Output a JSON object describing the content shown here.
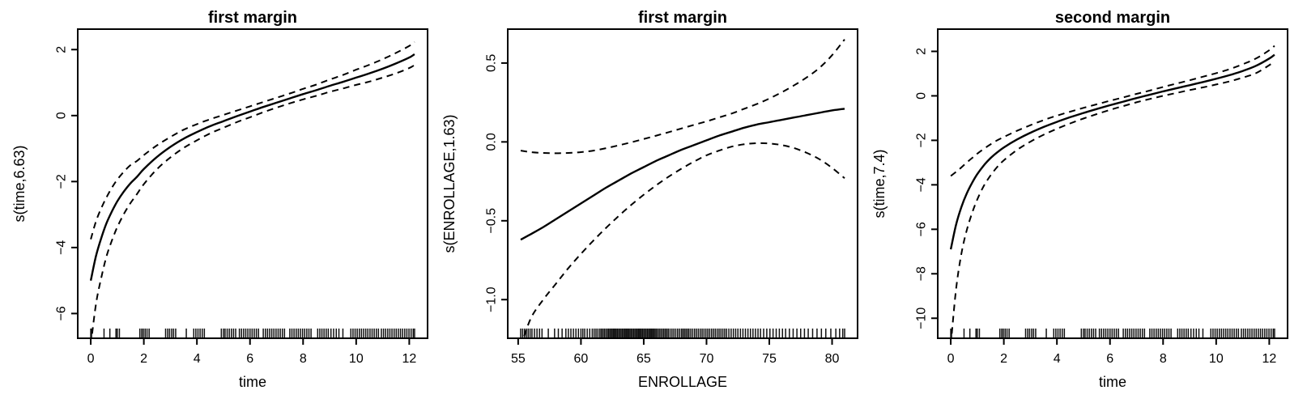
{
  "figure": {
    "background": "#ffffff",
    "line_color": "#000000",
    "description": "GAM smooth term plots with 2-SE dashed confidence bands and data rug"
  },
  "chart_data": [
    {
      "id": "first-margin-time",
      "type": "line",
      "title": "first margin",
      "xlabel": "time",
      "ylabel": "s(time,6.63)",
      "xlim": [
        -0.49,
        12.69
      ],
      "ylim": [
        -6.75,
        2.62
      ],
      "grid": false,
      "legend": "none",
      "xticks": [
        0,
        2,
        4,
        6,
        8,
        10,
        12
      ],
      "xtick_labels": [
        "0",
        "2",
        "4",
        "6",
        "8",
        "10",
        "12"
      ],
      "yticks": [
        2,
        0,
        -2,
        -4,
        -6
      ],
      "ytick_labels": [
        "2",
        "0",
        "−2",
        "−4",
        "−6"
      ],
      "series": [
        {
          "name": "fit",
          "style": "solid",
          "x": [
            0,
            0.2,
            0.4,
            0.6,
            0.8,
            1,
            1.25,
            1.5,
            1.75,
            2,
            2.5,
            3,
            3.5,
            4,
            4.5,
            5,
            5.5,
            6,
            6.5,
            7,
            7.5,
            8,
            8.5,
            9,
            9.5,
            10,
            10.5,
            11,
            11.5,
            12,
            12.2
          ],
          "y": [
            -5.0,
            -4.25,
            -3.7,
            -3.25,
            -2.9,
            -2.6,
            -2.3,
            -2.05,
            -1.85,
            -1.62,
            -1.25,
            -0.95,
            -0.7,
            -0.5,
            -0.32,
            -0.17,
            -0.02,
            0.12,
            0.26,
            0.39,
            0.52,
            0.65,
            0.77,
            0.9,
            1.02,
            1.15,
            1.28,
            1.42,
            1.58,
            1.76,
            1.86
          ]
        },
        {
          "name": "upper-ci",
          "style": "dashed",
          "x": [
            0,
            0.2,
            0.4,
            0.6,
            0.8,
            1,
            1.25,
            1.5,
            1.75,
            2,
            2.5,
            3,
            3.5,
            4,
            4.5,
            5,
            5.5,
            6,
            6.5,
            7,
            7.5,
            8,
            8.5,
            9,
            9.5,
            10,
            10.5,
            11,
            11.5,
            12,
            12.2
          ],
          "y": [
            -3.75,
            -3.2,
            -2.8,
            -2.47,
            -2.18,
            -1.94,
            -1.7,
            -1.5,
            -1.37,
            -1.2,
            -0.9,
            -0.65,
            -0.43,
            -0.26,
            -0.11,
            0.02,
            0.15,
            0.28,
            0.41,
            0.54,
            0.67,
            0.81,
            0.94,
            1.09,
            1.23,
            1.39,
            1.54,
            1.71,
            1.9,
            2.11,
            2.23
          ]
        },
        {
          "name": "lower-ci",
          "style": "dashed",
          "x": [
            0,
            0.2,
            0.4,
            0.6,
            0.8,
            1,
            1.25,
            1.5,
            1.75,
            2,
            2.5,
            3,
            3.5,
            4,
            4.5,
            5,
            5.5,
            6,
            6.5,
            7,
            7.5,
            8,
            8.5,
            9,
            9.5,
            10,
            10.5,
            11,
            11.5,
            12,
            12.2
          ],
          "y": [
            -6.95,
            -5.7,
            -4.9,
            -4.25,
            -3.78,
            -3.38,
            -2.98,
            -2.65,
            -2.37,
            -2.08,
            -1.62,
            -1.27,
            -0.98,
            -0.75,
            -0.54,
            -0.37,
            -0.2,
            -0.05,
            0.1,
            0.24,
            0.37,
            0.49,
            0.6,
            0.72,
            0.82,
            0.93,
            1.03,
            1.15,
            1.28,
            1.44,
            1.53
          ]
        }
      ],
      "rug": [
        0,
        0.03,
        0.5,
        0.72,
        0.95,
        1.0,
        1.08,
        1.85,
        1.92,
        1.98,
        2.05,
        2.12,
        2.2,
        2.82,
        2.9,
        2.97,
        3.05,
        3.12,
        3.2,
        3.6,
        3.88,
        3.96,
        4.04,
        4.12,
        4.2,
        4.28,
        4.92,
        5.0,
        5.06,
        5.14,
        5.22,
        5.3,
        5.38,
        5.46,
        5.6,
        5.68,
        5.76,
        5.84,
        5.92,
        6.0,
        6.08,
        6.16,
        6.24,
        6.32,
        6.5,
        6.58,
        6.66,
        6.74,
        6.82,
        6.9,
        6.98,
        7.06,
        7.14,
        7.22,
        7.3,
        7.5,
        7.58,
        7.66,
        7.74,
        7.82,
        7.9,
        7.98,
        8.06,
        8.14,
        8.22,
        8.3,
        8.55,
        8.63,
        8.71,
        8.79,
        8.87,
        8.95,
        9.05,
        9.15,
        9.25,
        9.35,
        9.5,
        9.8,
        9.88,
        9.96,
        10.04,
        10.12,
        10.2,
        10.28,
        10.36,
        10.44,
        10.52,
        10.6,
        10.68,
        10.76,
        10.84,
        10.95,
        11.03,
        11.11,
        11.19,
        11.27,
        11.35,
        11.43,
        11.51,
        11.59,
        11.67,
        11.75,
        11.83,
        11.91,
        11.99,
        12.07,
        12.15,
        12.2
      ]
    },
    {
      "id": "first-margin-enrollage",
      "type": "line",
      "title": "first margin",
      "xlabel": "ENROLLAGE",
      "ylabel": "s(ENROLLAGE,1.63)",
      "xlim": [
        54.17,
        82.03
      ],
      "ylim": [
        -1.245,
        0.715
      ],
      "grid": false,
      "legend": "none",
      "xticks": [
        55,
        60,
        65,
        70,
        75,
        80
      ],
      "xtick_labels": [
        "55",
        "60",
        "65",
        "70",
        "75",
        "80"
      ],
      "yticks": [
        0.5,
        0.0,
        -0.5,
        -1.0
      ],
      "ytick_labels": [
        "0.5",
        "0.0",
        "−0.5",
        "−1.0"
      ],
      "series": [
        {
          "name": "fit",
          "style": "solid",
          "x": [
            55.2,
            56,
            57,
            58,
            59,
            60,
            61,
            62,
            63,
            64,
            65,
            66,
            67,
            68,
            69,
            70,
            71,
            72,
            73,
            74,
            75,
            76,
            77,
            78,
            79,
            80,
            81
          ],
          "y": [
            -0.62,
            -0.585,
            -0.54,
            -0.49,
            -0.44,
            -0.39,
            -0.34,
            -0.29,
            -0.245,
            -0.2,
            -0.16,
            -0.12,
            -0.085,
            -0.05,
            -0.02,
            0.01,
            0.04,
            0.065,
            0.09,
            0.11,
            0.125,
            0.14,
            0.155,
            0.17,
            0.185,
            0.2,
            0.21
          ]
        },
        {
          "name": "upper-ci",
          "style": "dashed",
          "x": [
            55.2,
            56,
            57,
            58,
            59,
            60,
            61,
            62,
            63,
            64,
            65,
            66,
            67,
            68,
            69,
            70,
            71,
            72,
            73,
            74,
            75,
            76,
            77,
            78,
            79,
            80,
            81
          ],
          "y": [
            -0.055,
            -0.065,
            -0.07,
            -0.072,
            -0.07,
            -0.065,
            -0.055,
            -0.04,
            -0.022,
            -0.003,
            0.018,
            0.04,
            0.062,
            0.085,
            0.108,
            0.13,
            0.155,
            0.18,
            0.21,
            0.24,
            0.275,
            0.315,
            0.36,
            0.41,
            0.47,
            0.55,
            0.65
          ]
        },
        {
          "name": "lower-ci",
          "style": "dashed",
          "x": [
            55.2,
            56,
            57,
            58,
            59,
            60,
            61,
            62,
            63,
            64,
            65,
            66,
            67,
            68,
            69,
            70,
            71,
            72,
            73,
            74,
            75,
            76,
            77,
            78,
            79,
            80,
            81
          ],
          "y": [
            -1.3,
            -1.12,
            -1.0,
            -0.9,
            -0.8,
            -0.71,
            -0.625,
            -0.545,
            -0.47,
            -0.4,
            -0.335,
            -0.275,
            -0.22,
            -0.17,
            -0.125,
            -0.085,
            -0.055,
            -0.03,
            -0.015,
            -0.008,
            -0.01,
            -0.02,
            -0.04,
            -0.07,
            -0.11,
            -0.165,
            -0.23
          ]
        }
      ],
      "rug": [
        55.2,
        55.35,
        55.5,
        55.65,
        55.8,
        55.95,
        56.1,
        56.3,
        56.5,
        56.7,
        56.9,
        57.4,
        57.9,
        58.2,
        58.5,
        58.8,
        59.0,
        59.2,
        59.4,
        59.6,
        59.8,
        60.0,
        60.15,
        60.3,
        60.5,
        60.7,
        60.9,
        61.05,
        61.2,
        61.35,
        61.5,
        61.62,
        61.74,
        61.86,
        61.98,
        62.1,
        62.2,
        62.3,
        62.4,
        62.5,
        62.6,
        62.7,
        62.8,
        62.9,
        63.0,
        63.1,
        63.2,
        63.3,
        63.4,
        63.5,
        63.6,
        63.7,
        63.8,
        63.9,
        64.0,
        64.1,
        64.2,
        64.3,
        64.4,
        64.5,
        64.6,
        64.7,
        64.8,
        64.9,
        65.0,
        65.1,
        65.2,
        65.3,
        65.4,
        65.5,
        65.6,
        65.7,
        65.8,
        65.9,
        66.0,
        66.12,
        66.24,
        66.36,
        66.48,
        66.6,
        66.72,
        66.84,
        66.96,
        67.1,
        67.25,
        67.4,
        67.55,
        67.7,
        67.85,
        68.0,
        68.12,
        68.24,
        68.36,
        68.48,
        68.6,
        68.75,
        68.9,
        69.05,
        69.2,
        69.35,
        69.5,
        69.65,
        69.8,
        69.95,
        70.1,
        70.25,
        70.4,
        70.55,
        70.7,
        70.85,
        71.0,
        71.15,
        71.3,
        71.45,
        71.6,
        71.78,
        71.96,
        72.14,
        72.32,
        72.5,
        72.7,
        72.9,
        73.1,
        73.3,
        73.5,
        73.7,
        73.9,
        74.1,
        74.3,
        74.55,
        74.8,
        75.05,
        75.3,
        75.55,
        75.8,
        76.05,
        76.3,
        76.6,
        76.9,
        77.2,
        77.5,
        77.8,
        78.1,
        78.45,
        78.8,
        79.15,
        79.5,
        79.9,
        80.3,
        80.6,
        80.85,
        81.0
      ]
    },
    {
      "id": "second-margin-time",
      "type": "line",
      "title": "second margin",
      "xlabel": "time",
      "ylabel": "s(time,7.4)",
      "xlim": [
        -0.49,
        12.69
      ],
      "ylim": [
        -10.9,
        3.0
      ],
      "grid": false,
      "legend": "none",
      "xticks": [
        0,
        2,
        4,
        6,
        8,
        10,
        12
      ],
      "xtick_labels": [
        "0",
        "2",
        "4",
        "6",
        "8",
        "10",
        "12"
      ],
      "yticks": [
        2,
        0,
        -2,
        -4,
        -6,
        -8,
        -10
      ],
      "ytick_labels": [
        "2",
        "0",
        "−2",
        "−4",
        "−6",
        "−8",
        "−10"
      ],
      "series": [
        {
          "name": "fit",
          "style": "solid",
          "x": [
            0,
            0.2,
            0.4,
            0.6,
            0.8,
            1,
            1.25,
            1.5,
            1.75,
            2,
            2.5,
            3,
            3.5,
            4,
            4.5,
            5,
            5.5,
            6,
            6.5,
            7,
            7.5,
            8,
            8.5,
            9,
            9.5,
            10,
            10.5,
            11,
            11.5,
            12,
            12.2
          ],
          "y": [
            -6.9,
            -5.8,
            -5.0,
            -4.4,
            -3.92,
            -3.52,
            -3.12,
            -2.8,
            -2.54,
            -2.32,
            -1.96,
            -1.66,
            -1.4,
            -1.17,
            -0.96,
            -0.77,
            -0.59,
            -0.42,
            -0.26,
            -0.1,
            0.05,
            0.2,
            0.34,
            0.48,
            0.62,
            0.77,
            0.93,
            1.12,
            1.35,
            1.68,
            1.85
          ]
        },
        {
          "name": "upper-ci",
          "style": "dashed",
          "x": [
            0,
            0.2,
            0.4,
            0.6,
            0.8,
            1,
            1.25,
            1.5,
            1.75,
            2,
            2.5,
            3,
            3.5,
            4,
            4.5,
            5,
            5.5,
            6,
            6.5,
            7,
            7.5,
            8,
            8.5,
            9,
            9.5,
            10,
            10.5,
            11,
            11.5,
            12,
            12.2
          ],
          "y": [
            -3.6,
            -3.42,
            -3.22,
            -3.0,
            -2.8,
            -2.6,
            -2.38,
            -2.18,
            -2.0,
            -1.85,
            -1.57,
            -1.32,
            -1.09,
            -0.89,
            -0.71,
            -0.54,
            -0.38,
            -0.22,
            -0.07,
            0.09,
            0.24,
            0.4,
            0.55,
            0.7,
            0.86,
            1.02,
            1.2,
            1.42,
            1.68,
            2.05,
            2.25
          ]
        },
        {
          "name": "lower-ci",
          "style": "dashed",
          "x": [
            0,
            0.2,
            0.4,
            0.6,
            0.8,
            1,
            1.25,
            1.5,
            1.75,
            2,
            2.5,
            3,
            3.5,
            4,
            4.5,
            5,
            5.5,
            6,
            6.5,
            7,
            7.5,
            8,
            8.5,
            9,
            9.5,
            10,
            10.5,
            11,
            11.5,
            12,
            12.2
          ],
          "y": [
            -11.2,
            -8.7,
            -7.1,
            -6.06,
            -5.28,
            -4.66,
            -4.04,
            -3.58,
            -3.2,
            -2.9,
            -2.43,
            -2.06,
            -1.75,
            -1.48,
            -1.24,
            -1.02,
            -0.82,
            -0.63,
            -0.46,
            -0.29,
            -0.14,
            0.0,
            0.13,
            0.26,
            0.38,
            0.51,
            0.65,
            0.82,
            1.02,
            1.38,
            1.55
          ]
        }
      ],
      "rug": [
        0,
        0.03,
        0.5,
        0.72,
        0.95,
        1.0,
        1.08,
        1.85,
        1.92,
        1.98,
        2.05,
        2.12,
        2.2,
        2.82,
        2.9,
        2.97,
        3.05,
        3.12,
        3.2,
        3.6,
        3.88,
        3.96,
        4.04,
        4.12,
        4.2,
        4.28,
        4.92,
        5.0,
        5.06,
        5.14,
        5.22,
        5.3,
        5.38,
        5.46,
        5.6,
        5.68,
        5.76,
        5.84,
        5.92,
        6.0,
        6.08,
        6.16,
        6.24,
        6.32,
        6.5,
        6.58,
        6.66,
        6.74,
        6.82,
        6.9,
        6.98,
        7.06,
        7.14,
        7.22,
        7.3,
        7.5,
        7.58,
        7.66,
        7.74,
        7.82,
        7.9,
        7.98,
        8.06,
        8.14,
        8.22,
        8.3,
        8.55,
        8.63,
        8.71,
        8.79,
        8.87,
        8.95,
        9.05,
        9.15,
        9.25,
        9.35,
        9.5,
        9.8,
        9.88,
        9.96,
        10.04,
        10.12,
        10.2,
        10.28,
        10.36,
        10.44,
        10.52,
        10.6,
        10.68,
        10.76,
        10.84,
        10.95,
        11.03,
        11.11,
        11.19,
        11.27,
        11.35,
        11.43,
        11.51,
        11.59,
        11.67,
        11.75,
        11.83,
        11.91,
        11.99,
        12.07,
        12.15,
        12.2
      ]
    }
  ]
}
